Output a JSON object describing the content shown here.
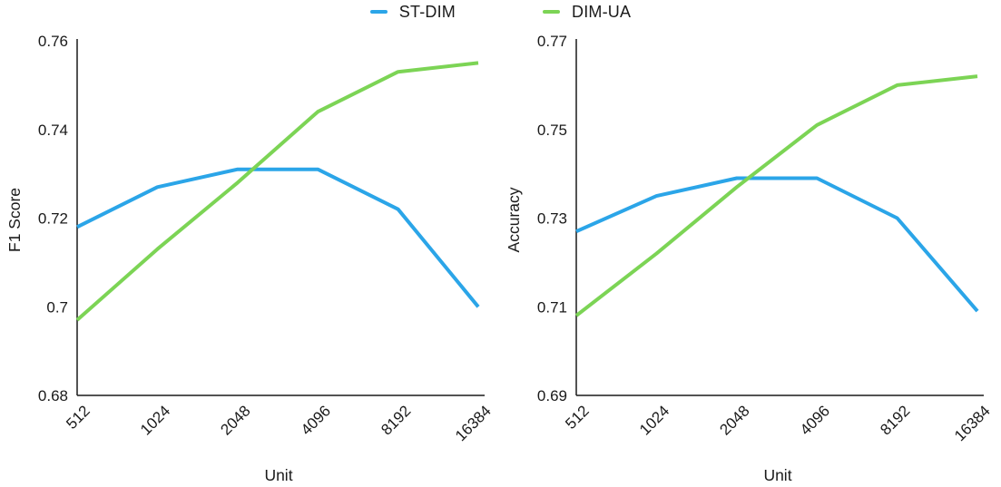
{
  "legend": {
    "items": [
      {
        "label": "ST-DIM",
        "color": "#2BA5E8"
      },
      {
        "label": "DIM-UA",
        "color": "#7CD455"
      }
    ]
  },
  "chart_data": [
    {
      "type": "line",
      "title": "",
      "xlabel": "Unit",
      "ylabel": "F1 Score",
      "categories": [
        "512",
        "1024",
        "2048",
        "4096",
        "8192",
        "16384"
      ],
      "ylim": [
        0.68,
        0.76
      ],
      "ytick_values": [
        0.68,
        0.7,
        0.72,
        0.74,
        0.76
      ],
      "ytick_labels": [
        "0.68",
        "0.7",
        "0.72",
        "0.74",
        "0.76"
      ],
      "grid": false,
      "legend_position": "top-center",
      "series": [
        {
          "name": "ST-DIM",
          "color": "#2BA5E8",
          "values": [
            0.718,
            0.727,
            0.731,
            0.731,
            0.722,
            0.7
          ]
        },
        {
          "name": "DIM-UA",
          "color": "#7CD455",
          "values": [
            0.697,
            0.713,
            0.728,
            0.744,
            0.753,
            0.755
          ]
        }
      ]
    },
    {
      "type": "line",
      "title": "",
      "xlabel": "Unit",
      "ylabel": "Accuracy",
      "categories": [
        "512",
        "1024",
        "2048",
        "4096",
        "8192",
        "16384"
      ],
      "ylim": [
        0.69,
        0.77
      ],
      "ytick_values": [
        0.69,
        0.71,
        0.73,
        0.75,
        0.77
      ],
      "ytick_labels": [
        "0.69",
        "0.71",
        "0.73",
        "0.75",
        "0.77"
      ],
      "grid": false,
      "legend_position": "top-center",
      "series": [
        {
          "name": "ST-DIM",
          "color": "#2BA5E8",
          "values": [
            0.727,
            0.735,
            0.739,
            0.739,
            0.73,
            0.709
          ]
        },
        {
          "name": "DIM-UA",
          "color": "#7CD455",
          "values": [
            0.708,
            0.722,
            0.737,
            0.751,
            0.76,
            0.762
          ]
        }
      ]
    }
  ]
}
